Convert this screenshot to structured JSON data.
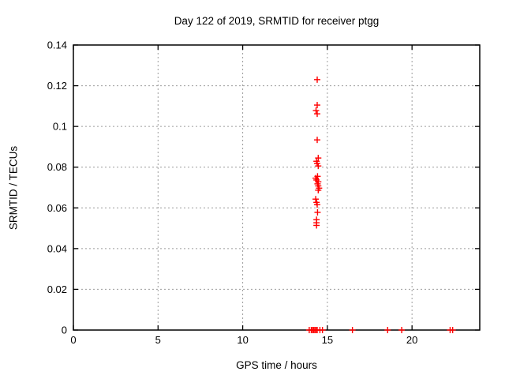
{
  "figure": {
    "background_color": "#ffffff",
    "axis_color": "#000000",
    "grid_color": "#9c9c9c"
  },
  "chart_data": {
    "type": "scatter",
    "title": "Day 122 of 2019, SRMTID for receiver ptgg",
    "xlabel": "GPS time / hours",
    "ylabel": "SRMTID / TECUs",
    "xlim": [
      0,
      24
    ],
    "ylim": [
      0,
      0.14
    ],
    "x_ticks": [
      0,
      5,
      10,
      15,
      20
    ],
    "x_tick_labels": [
      "0",
      "5",
      "10",
      "15",
      "20"
    ],
    "y_ticks": [
      0,
      0.02,
      0.04,
      0.06,
      0.08,
      0.1,
      0.12,
      0.14
    ],
    "y_tick_labels": [
      "0",
      "0.02",
      "0.04",
      "0.06",
      "0.08",
      "0.1",
      "0.12",
      "0.14"
    ],
    "grid": true,
    "legend_position": "none",
    "marker": "plus",
    "marker_color": "#ff0000",
    "series": [
      {
        "name": "SRMTID",
        "points": [
          [
            14.4,
            0.123
          ],
          [
            14.4,
            0.1105
          ],
          [
            14.33,
            0.1078
          ],
          [
            14.4,
            0.1062
          ],
          [
            14.4,
            0.0934
          ],
          [
            14.46,
            0.0845
          ],
          [
            14.36,
            0.0829
          ],
          [
            14.4,
            0.0818
          ],
          [
            14.46,
            0.0806
          ],
          [
            14.42,
            0.0755
          ],
          [
            14.31,
            0.0746
          ],
          [
            14.36,
            0.0737
          ],
          [
            14.46,
            0.0728
          ],
          [
            14.42,
            0.0718
          ],
          [
            14.46,
            0.0708
          ],
          [
            14.51,
            0.0697
          ],
          [
            14.46,
            0.0687
          ],
          [
            14.31,
            0.0643
          ],
          [
            14.36,
            0.0627
          ],
          [
            14.4,
            0.0616
          ],
          [
            14.42,
            0.0578
          ],
          [
            14.36,
            0.0542
          ],
          [
            14.36,
            0.0527
          ],
          [
            14.36,
            0.0514
          ],
          [
            13.93,
            0
          ],
          [
            14.05,
            0
          ],
          [
            14.12,
            0
          ],
          [
            14.19,
            0
          ],
          [
            14.26,
            0
          ],
          [
            14.33,
            0
          ],
          [
            14.4,
            0
          ],
          [
            14.56,
            0
          ],
          [
            14.71,
            0
          ],
          [
            16.48,
            0
          ],
          [
            18.56,
            0
          ],
          [
            19.39,
            0
          ],
          [
            22.25,
            0
          ],
          [
            22.4,
            0
          ]
        ]
      }
    ]
  }
}
